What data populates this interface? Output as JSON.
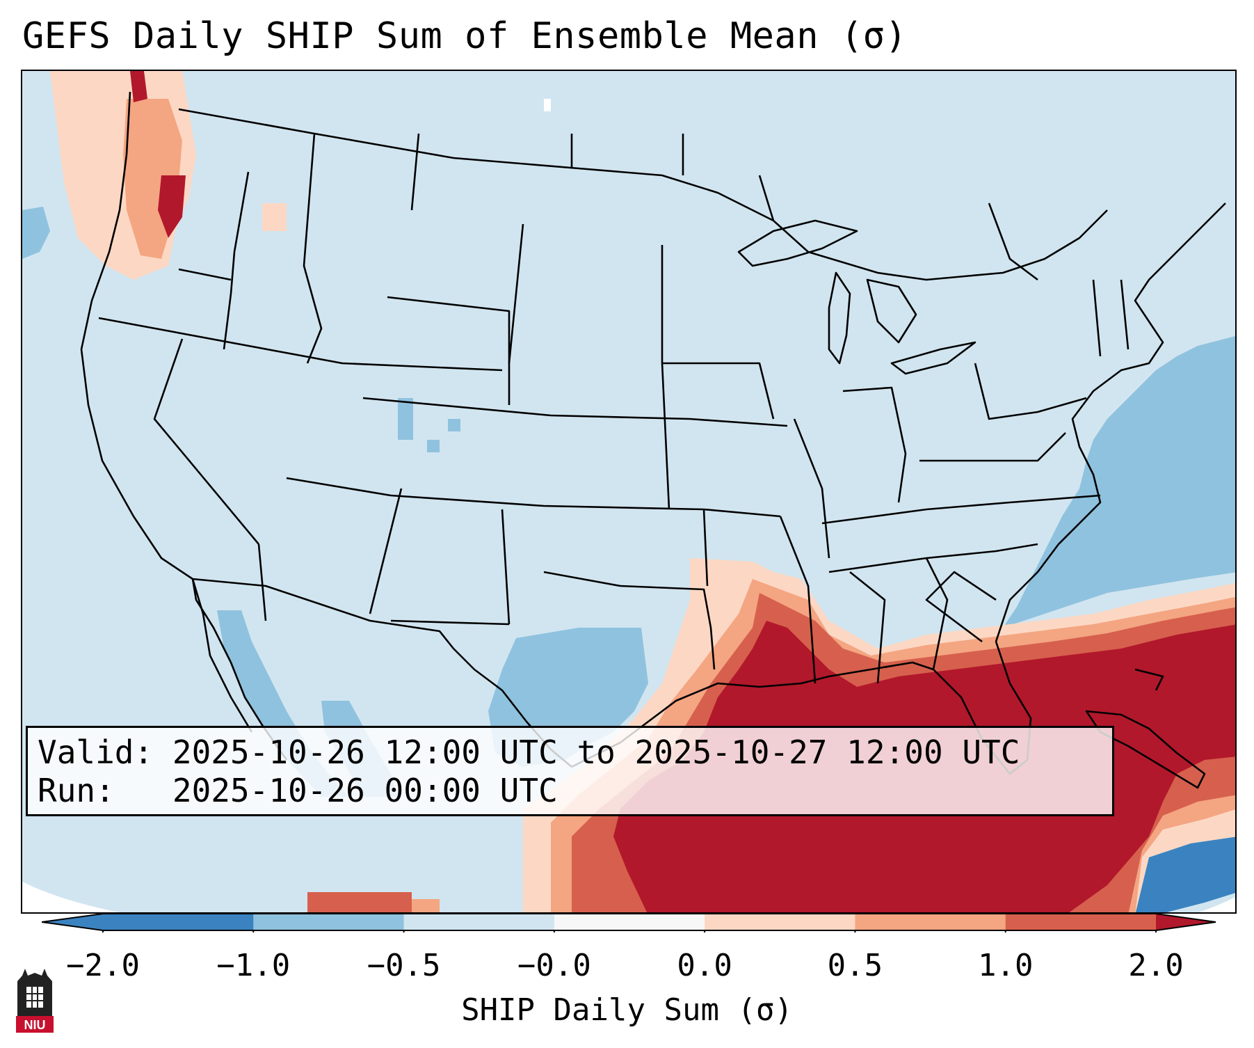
{
  "title": "GEFS Daily SHIP Sum of Ensemble Mean (σ)",
  "info": {
    "valid_label": "Valid:",
    "valid_value": "2025-10-26 12:00 UTC to 2025-10-27 12:00 UTC",
    "run_label": "Run:",
    "run_value": "2025-10-26 00:00 UTC"
  },
  "colorbar": {
    "label": "SHIP Daily Sum (σ)",
    "ticks": [
      "−2.0",
      "−1.0",
      "−0.5",
      "−0.0",
      "0.0",
      "0.5",
      "1.0",
      "2.0"
    ],
    "colors": [
      "#3a83c0",
      "#8fc2de",
      "#d1e5f0",
      "#f7f7f7",
      "#fcd8c4",
      "#f4a582",
      "#d6604d",
      "#b2182b"
    ],
    "extend": "both"
  },
  "map_colors": {
    "background_field": "#d1e5f0",
    "strong_negative": "#3a83c0",
    "moderate_negative": "#8fc2de",
    "near_zero": "#f7f7f7",
    "slight_positive": "#fcd8c4",
    "moderate_positive": "#f4a582",
    "high_positive": "#d6604d",
    "strong_positive": "#b2182b",
    "boundaries": "#000000"
  },
  "logo": {
    "text": "NIU",
    "color": "#c8102e"
  }
}
